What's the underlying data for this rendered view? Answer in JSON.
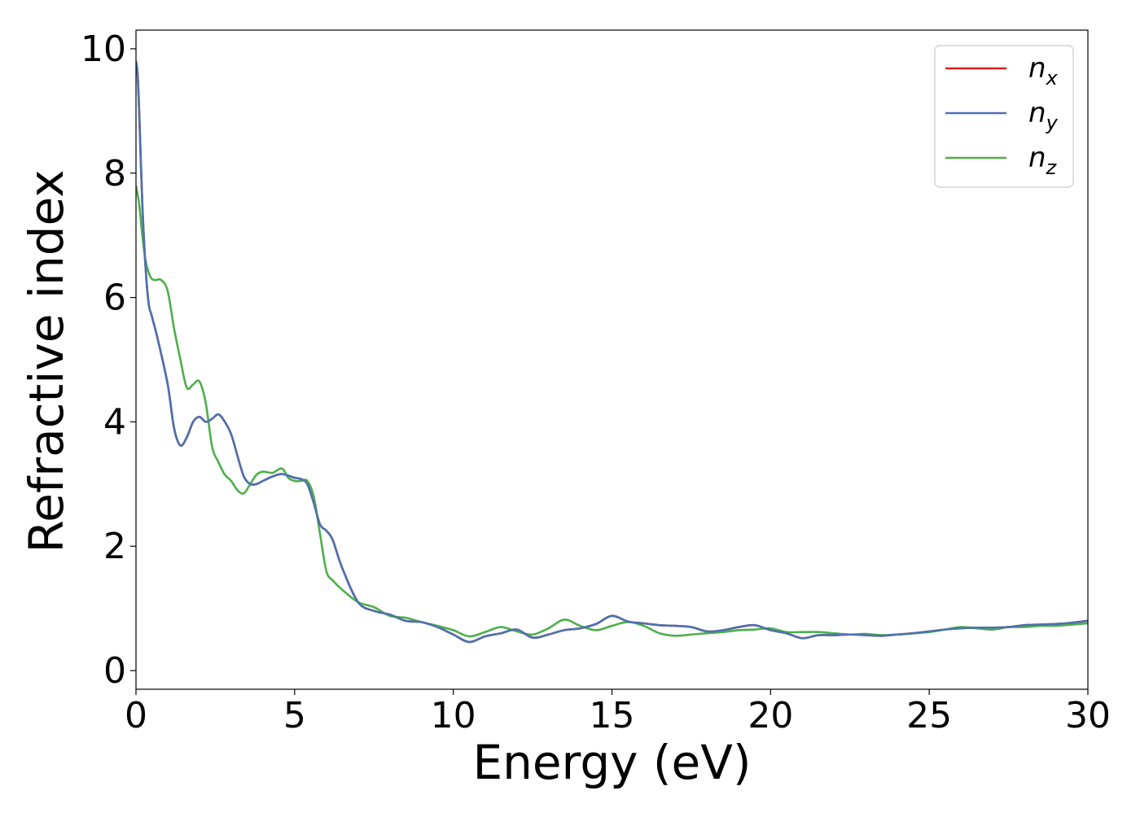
{
  "chart_data": {
    "type": "line",
    "title": "",
    "xlabel": "Energy (eV)",
    "ylabel": "Refractive index",
    "xlim": [
      0,
      30
    ],
    "ylim": [
      -0.3,
      10.3
    ],
    "xticks": [
      0,
      5,
      10,
      15,
      20,
      25,
      30
    ],
    "yticks": [
      0,
      2,
      4,
      6,
      8,
      10
    ],
    "grid": false,
    "legend": "top-right",
    "series": [
      {
        "name": "n_x",
        "label_base": "n",
        "label_sub": "x",
        "color": "#e41a1c",
        "x": [
          0,
          0.05,
          0.1,
          0.2,
          0.3,
          0.4,
          0.5,
          0.7,
          1.0,
          1.2,
          1.4,
          1.6,
          1.8,
          2.0,
          2.2,
          2.4,
          2.6,
          2.8,
          3.0,
          3.2,
          3.4,
          3.6,
          3.8,
          4.0,
          4.3,
          4.6,
          5.0,
          5.2,
          5.4,
          5.6,
          5.8,
          6.0,
          6.2,
          6.5,
          7.0,
          7.5,
          8.0,
          8.5,
          9.0,
          9.5,
          10.0,
          10.5,
          11.0,
          11.5,
          12.0,
          12.5,
          13.0,
          13.5,
          14.0,
          14.5,
          15.0,
          15.5,
          16.0,
          16.5,
          17.0,
          17.5,
          18.0,
          18.5,
          19.0,
          19.5,
          20.0,
          20.5,
          21.0,
          21.5,
          22.0,
          22.5,
          23.0,
          23.5,
          24.0,
          24.5,
          25.0,
          25.5,
          26.0,
          26.5,
          27.0,
          27.5,
          28.0,
          28.5,
          29.0,
          29.5,
          30.0
        ],
        "y": [
          9.8,
          9.6,
          9.0,
          7.5,
          6.5,
          5.9,
          5.7,
          5.3,
          4.6,
          3.9,
          3.62,
          3.75,
          4.0,
          4.08,
          4.0,
          4.05,
          4.12,
          4.0,
          3.8,
          3.45,
          3.12,
          3.0,
          3.0,
          3.05,
          3.12,
          3.16,
          3.1,
          3.08,
          3.0,
          2.7,
          2.35,
          2.25,
          2.1,
          1.65,
          1.1,
          0.96,
          0.9,
          0.8,
          0.78,
          0.7,
          0.58,
          0.46,
          0.55,
          0.6,
          0.66,
          0.53,
          0.58,
          0.65,
          0.68,
          0.75,
          0.88,
          0.79,
          0.76,
          0.73,
          0.72,
          0.7,
          0.63,
          0.65,
          0.7,
          0.73,
          0.65,
          0.6,
          0.52,
          0.57,
          0.57,
          0.58,
          0.57,
          0.56,
          0.58,
          0.6,
          0.63,
          0.66,
          0.68,
          0.69,
          0.69,
          0.7,
          0.73,
          0.74,
          0.75,
          0.77,
          0.8
        ]
      },
      {
        "name": "n_y",
        "label_base": "n",
        "label_sub": "y",
        "color": "#4a72b0",
        "x": [
          0,
          0.05,
          0.1,
          0.2,
          0.3,
          0.4,
          0.5,
          0.7,
          1.0,
          1.2,
          1.4,
          1.6,
          1.8,
          2.0,
          2.2,
          2.4,
          2.6,
          2.8,
          3.0,
          3.2,
          3.4,
          3.6,
          3.8,
          4.0,
          4.3,
          4.6,
          5.0,
          5.2,
          5.4,
          5.6,
          5.8,
          6.0,
          6.2,
          6.5,
          7.0,
          7.5,
          8.0,
          8.5,
          9.0,
          9.5,
          10.0,
          10.5,
          11.0,
          11.5,
          12.0,
          12.5,
          13.0,
          13.5,
          14.0,
          14.5,
          15.0,
          15.5,
          16.0,
          16.5,
          17.0,
          17.5,
          18.0,
          18.5,
          19.0,
          19.5,
          20.0,
          20.5,
          21.0,
          21.5,
          22.0,
          22.5,
          23.0,
          23.5,
          24.0,
          24.5,
          25.0,
          25.5,
          26.0,
          26.5,
          27.0,
          27.5,
          28.0,
          28.5,
          29.0,
          29.5,
          30.0
        ],
        "y": [
          9.8,
          9.6,
          9.0,
          7.5,
          6.5,
          5.9,
          5.7,
          5.3,
          4.6,
          3.9,
          3.62,
          3.75,
          4.0,
          4.08,
          4.0,
          4.05,
          4.12,
          4.0,
          3.8,
          3.45,
          3.12,
          3.0,
          3.0,
          3.05,
          3.12,
          3.16,
          3.1,
          3.08,
          3.0,
          2.7,
          2.35,
          2.25,
          2.1,
          1.65,
          1.1,
          0.96,
          0.9,
          0.8,
          0.78,
          0.7,
          0.58,
          0.46,
          0.55,
          0.6,
          0.66,
          0.53,
          0.58,
          0.65,
          0.68,
          0.75,
          0.88,
          0.79,
          0.76,
          0.73,
          0.72,
          0.7,
          0.63,
          0.65,
          0.7,
          0.73,
          0.65,
          0.6,
          0.52,
          0.57,
          0.57,
          0.58,
          0.57,
          0.56,
          0.58,
          0.6,
          0.63,
          0.66,
          0.68,
          0.69,
          0.69,
          0.7,
          0.73,
          0.74,
          0.75,
          0.77,
          0.8
        ]
      },
      {
        "name": "n_z",
        "label_base": "n",
        "label_sub": "z",
        "color": "#4daf4a",
        "x": [
          0,
          0.1,
          0.2,
          0.3,
          0.4,
          0.5,
          0.6,
          0.8,
          1.0,
          1.2,
          1.4,
          1.6,
          1.8,
          2.0,
          2.2,
          2.4,
          2.6,
          2.8,
          3.0,
          3.2,
          3.4,
          3.6,
          3.8,
          4.0,
          4.3,
          4.6,
          4.8,
          5.0,
          5.2,
          5.4,
          5.6,
          5.8,
          6.0,
          6.2,
          6.5,
          7.0,
          7.5,
          8.0,
          8.5,
          9.0,
          9.5,
          10.0,
          10.5,
          11.0,
          11.5,
          12.0,
          12.5,
          13.0,
          13.5,
          14.0,
          14.5,
          15.0,
          15.5,
          16.0,
          16.5,
          17.0,
          17.5,
          18.0,
          18.5,
          19.0,
          19.5,
          20.0,
          20.5,
          21.0,
          21.5,
          22.0,
          22.5,
          23.0,
          23.5,
          24.0,
          24.5,
          25.0,
          25.5,
          26.0,
          26.5,
          27.0,
          27.5,
          28.0,
          28.5,
          29.0,
          29.5,
          30.0
        ],
        "y": [
          7.8,
          7.5,
          7.0,
          6.6,
          6.4,
          6.3,
          6.28,
          6.28,
          6.1,
          5.5,
          5.0,
          4.55,
          4.6,
          4.65,
          4.3,
          3.6,
          3.35,
          3.15,
          3.05,
          2.9,
          2.85,
          3.0,
          3.15,
          3.2,
          3.18,
          3.25,
          3.1,
          3.05,
          3.05,
          3.05,
          2.8,
          2.2,
          1.6,
          1.45,
          1.3,
          1.1,
          1.02,
          0.88,
          0.85,
          0.78,
          0.72,
          0.65,
          0.55,
          0.62,
          0.7,
          0.63,
          0.58,
          0.68,
          0.82,
          0.72,
          0.65,
          0.72,
          0.78,
          0.72,
          0.6,
          0.56,
          0.58,
          0.6,
          0.62,
          0.65,
          0.66,
          0.68,
          0.62,
          0.62,
          0.62,
          0.6,
          0.58,
          0.59,
          0.57,
          0.58,
          0.6,
          0.62,
          0.66,
          0.7,
          0.68,
          0.66,
          0.7,
          0.7,
          0.72,
          0.72,
          0.74,
          0.76
        ]
      }
    ]
  }
}
